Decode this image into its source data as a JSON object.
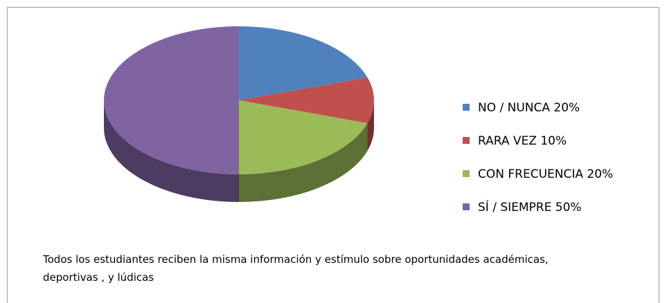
{
  "chart_data": {
    "type": "pie",
    "categories": [
      "NO / NUNCA 20%",
      "RARA VEZ 10%",
      "CON FRECUENCIA 20%",
      "SÍ / SIEMPRE 50%"
    ],
    "values": [
      20,
      10,
      20,
      50
    ],
    "colors": [
      "#4f81bd",
      "#c0504d",
      "#9bbb59",
      "#8064a2"
    ],
    "legend": "right",
    "caption": "Todos los estudiantes reciben la misma información y estímulo sobre oportunidades académicas,  deportivas , y lúdicas"
  }
}
